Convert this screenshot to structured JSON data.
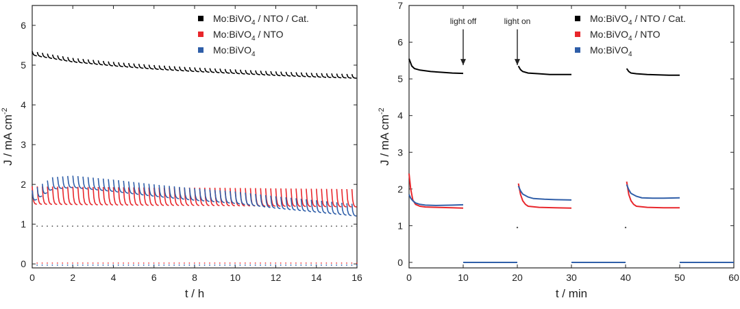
{
  "chart_data": [
    {
      "type": "line",
      "xlabel": "t / h",
      "ylabel": "J / mA cm",
      "ylabel_sup": "-2",
      "xlim": [
        0,
        16
      ],
      "ylim": [
        -0.1,
        6.5
      ],
      "xticks": [
        0,
        2,
        4,
        6,
        8,
        10,
        12,
        14,
        16
      ],
      "yticks": [
        0,
        1,
        2,
        3,
        4,
        5,
        6
      ],
      "grid": false,
      "legend_position": "top-right",
      "legend": [
        {
          "main": "Mo:BiVO",
          "sub": "4",
          "rest": " / NTO / Cat.",
          "color": "#000000"
        },
        {
          "main": "Mo:BiVO",
          "sub": "4",
          "rest": " / NTO",
          "color": "#e8262b"
        },
        {
          "main": "Mo:BiVO",
          "sub": "4",
          "rest": "",
          "color": "#2f5ea8"
        }
      ],
      "series": [
        {
          "color": "#000000",
          "x": [
            0,
            2,
            4,
            6,
            8,
            10,
            12,
            14,
            16
          ],
          "y": [
            5.25,
            5.08,
            4.98,
            4.9,
            4.84,
            4.79,
            4.74,
            4.7,
            4.67
          ],
          "spike": 0.1
        },
        {
          "color": "#e8262b",
          "x": [
            0,
            2,
            4,
            6,
            8,
            10,
            12,
            14,
            16
          ],
          "y": [
            1.5,
            1.49,
            1.48,
            1.47,
            1.47,
            1.46,
            1.45,
            1.44,
            1.43
          ],
          "spike": 0.45
        },
        {
          "color": "#2f5ea8",
          "x": [
            0,
            1,
            2,
            4,
            6,
            8,
            10,
            12,
            14,
            16
          ],
          "y": [
            1.55,
            1.88,
            1.92,
            1.82,
            1.7,
            1.6,
            1.52,
            1.4,
            1.3,
            1.2
          ],
          "spike": 0.3
        }
      ],
      "dark_dots_y": 0.95,
      "baseline_y": [
        0.02,
        -0.03
      ]
    },
    {
      "type": "line",
      "xlabel": "t / min",
      "ylabel": "J / mA cm",
      "ylabel_sup": "-2",
      "xlim": [
        0,
        60
      ],
      "ylim": [
        -0.15,
        7
      ],
      "xticks": [
        0,
        10,
        20,
        30,
        40,
        50,
        60
      ],
      "yticks": [
        0,
        1,
        2,
        3,
        4,
        5,
        6,
        7
      ],
      "grid": false,
      "legend_position": "top-right",
      "legend": [
        {
          "main": "Mo:BiVO",
          "sub": "4",
          "rest": " / NTO / Cat.",
          "color": "#000000"
        },
        {
          "main": "Mo:BiVO",
          "sub": "4",
          "rest": " / NTO",
          "color": "#e8262b"
        },
        {
          "main": "Mo:BiVO",
          "sub": "4",
          "rest": "",
          "color": "#2f5ea8"
        }
      ],
      "annotations": [
        {
          "text": "light off",
          "x": 10,
          "y": 5.3,
          "label_y": 6.5
        },
        {
          "text": "light on",
          "x": 20,
          "y": 5.3,
          "label_y": 6.5
        }
      ],
      "series": [
        {
          "color": "#000000",
          "segments": [
            {
              "x": [
                0,
                0.5,
                1,
                2,
                4,
                6,
                8,
                10
              ],
              "y": [
                5.55,
                5.35,
                5.28,
                5.24,
                5.2,
                5.18,
                5.16,
                5.15
              ]
            },
            {
              "x": [
                20.2,
                20.6,
                21,
                22,
                24,
                26,
                28,
                30
              ],
              "y": [
                5.35,
                5.25,
                5.2,
                5.16,
                5.14,
                5.12,
                5.12,
                5.12
              ]
            },
            {
              "x": [
                40.2,
                40.6,
                41,
                42,
                44,
                46,
                48,
                50
              ],
              "y": [
                5.28,
                5.2,
                5.16,
                5.14,
                5.12,
                5.11,
                5.1,
                5.1
              ]
            }
          ]
        },
        {
          "color": "#e8262b",
          "segments": [
            {
              "x": [
                0,
                0.3,
                0.7,
                1.2,
                2,
                3,
                5,
                8,
                10
              ],
              "y": [
                2.42,
                2.0,
                1.7,
                1.58,
                1.53,
                1.51,
                1.5,
                1.49,
                1.48
              ]
            },
            {
              "x": [
                20.2,
                20.6,
                21,
                21.5,
                22,
                24,
                27,
                30
              ],
              "y": [
                2.15,
                1.85,
                1.68,
                1.58,
                1.53,
                1.5,
                1.49,
                1.48
              ]
            },
            {
              "x": [
                40.2,
                40.6,
                41,
                41.5,
                42,
                44,
                47,
                50
              ],
              "y": [
                2.2,
                1.85,
                1.68,
                1.58,
                1.53,
                1.5,
                1.49,
                1.49
              ]
            }
          ]
        },
        {
          "color": "#2f5ea8",
          "segments": [
            {
              "x": [
                0,
                0.3,
                0.7,
                1.2,
                2,
                3,
                5,
                8,
                10
              ],
              "y": [
                1.85,
                1.75,
                1.68,
                1.62,
                1.58,
                1.56,
                1.55,
                1.56,
                1.57
              ]
            },
            {
              "x": [
                20.2,
                20.6,
                21,
                22,
                23,
                25,
                27,
                30
              ],
              "y": [
                2.08,
                1.95,
                1.86,
                1.78,
                1.74,
                1.72,
                1.71,
                1.7
              ]
            },
            {
              "x": [
                40.2,
                40.6,
                41,
                42,
                43,
                45,
                47,
                50
              ],
              "y": [
                2.12,
                1.98,
                1.88,
                1.8,
                1.76,
                1.75,
                1.75,
                1.76
              ]
            }
          ]
        }
      ],
      "dark_dots": [
        {
          "x": 20,
          "y": 0.95
        },
        {
          "x": 40,
          "y": 0.95
        }
      ],
      "off_baselines": [
        [
          10,
          20
        ],
        [
          30,
          40
        ],
        [
          50,
          60
        ]
      ]
    }
  ]
}
